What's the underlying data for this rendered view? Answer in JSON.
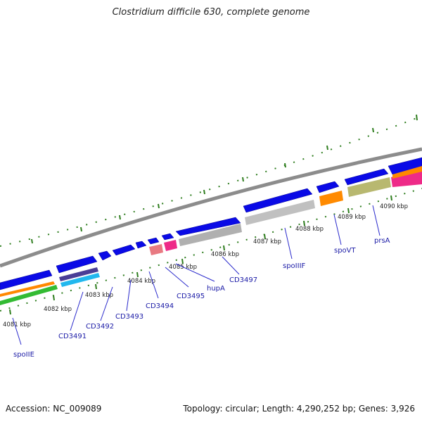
{
  "title": "Clostridium difficile 630, complete genome",
  "footer": {
    "accession": "Accession: NC_009089",
    "topology": "Topology: circular; Length: 4,290,252 bp; Genes: 3,926"
  },
  "colors": {
    "backbone": "#8c8c8c",
    "gene_blue": "#0a0ae6",
    "tick": "#2e7d1e",
    "label_line": "#2a2acc",
    "label_text": "#1a1aa6"
  },
  "kbp_labels": [
    "4081 kbp",
    "4082 kbp",
    "4083 kbp",
    "4084 kbp",
    "4085 kbp",
    "4086 kbp",
    "4087 kbp",
    "4088 kbp",
    "4089 kbp",
    "4090 kbp"
  ],
  "gene_labels": [
    "spoIIE",
    "CD3491",
    "CD3492",
    "CD3493",
    "CD3494",
    "CD3495",
    "hupA",
    "CD3497",
    "spoIIIF",
    "spoVT",
    "prsA"
  ]
}
